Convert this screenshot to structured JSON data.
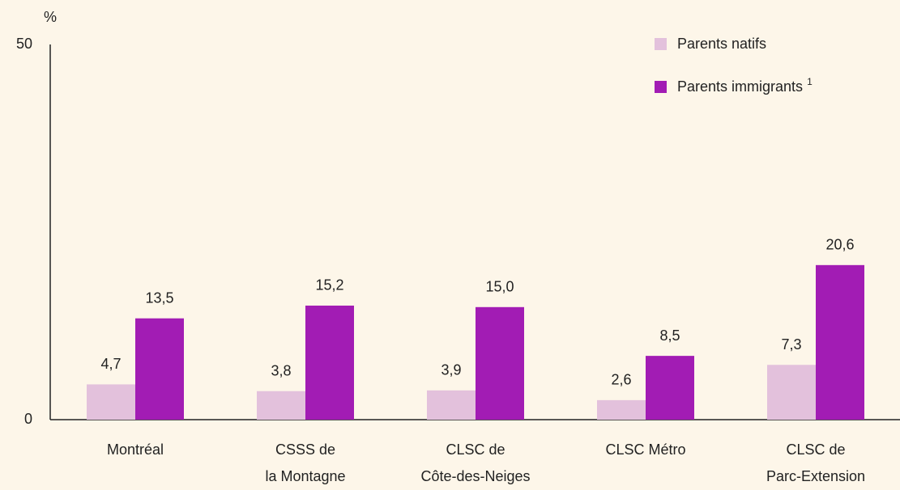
{
  "chart_data": {
    "type": "bar",
    "ylabel": "%",
    "categories": [
      [
        "Montréal"
      ],
      [
        "CSSS de",
        "la Montagne"
      ],
      [
        "CLSC de",
        "Côte-des-Neiges"
      ],
      [
        "CLSC Métro"
      ],
      [
        "CLSC de",
        "Parc-Extension"
      ]
    ],
    "series": [
      {
        "name": "Parents natifs",
        "color": "#e3c1dc",
        "values": [
          4.7,
          3.8,
          3.9,
          2.6,
          7.3
        ],
        "value_labels": [
          "4,7",
          "3,8",
          "3,9",
          "2,6",
          "7,3"
        ]
      },
      {
        "name": "Parents immigrants",
        "footnote": "1",
        "color": "#a21cb4",
        "values": [
          13.5,
          15.2,
          15.0,
          8.5,
          20.6
        ],
        "value_labels": [
          "13,5",
          "15,2",
          "15,0",
          "8,5",
          "20,6"
        ]
      }
    ],
    "ylim": [
      0,
      50
    ],
    "yticks": [
      0,
      50
    ],
    "grid": false,
    "legend": "upper right"
  }
}
